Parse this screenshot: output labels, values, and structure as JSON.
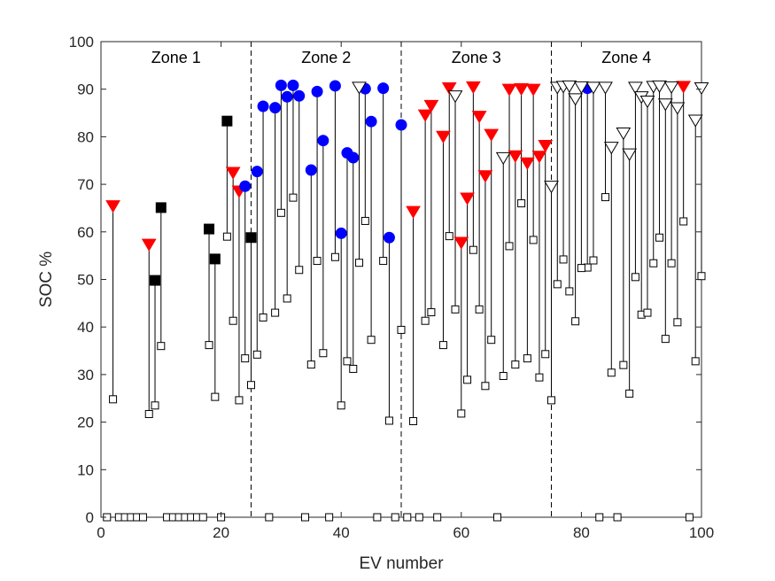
{
  "chart_data": {
    "type": "scatter",
    "title": "",
    "xlabel": "EV number",
    "ylabel": "SOC %",
    "xlim": [
      0,
      100
    ],
    "ylim": [
      0,
      100
    ],
    "xticks": [
      "0",
      "20",
      "40",
      "60",
      "80",
      "100"
    ],
    "yticks": [
      "0",
      "10",
      "20",
      "30",
      "40",
      "50",
      "60",
      "70",
      "80",
      "90",
      "100"
    ],
    "grid": false,
    "zone_boundaries": [
      25,
      50,
      75
    ],
    "zones": [
      {
        "label": "Zone 1",
        "x": 12.5
      },
      {
        "label": "Zone 2",
        "x": 37.5
      },
      {
        "label": "Zone 3",
        "x": 62.5
      },
      {
        "label": "Zone 4",
        "x": 87.5
      }
    ],
    "zone_label_y": 95,
    "colors": {
      "red": "#ff0000",
      "blue": "#0000ff",
      "black": "#000000",
      "white": "#ffffff"
    },
    "series": [
      {
        "marker": "red-triangle",
        "points": [
          [
            2,
            24.8,
            65.5
          ],
          [
            8,
            21.7,
            57.4
          ],
          [
            22,
            41.3,
            72.5
          ],
          [
            23,
            24.6,
            68.6
          ],
          [
            52,
            20.2,
            64.3
          ],
          [
            54,
            41.3,
            84.6
          ],
          [
            55,
            43.1,
            86.6
          ],
          [
            57,
            36.2,
            80.1
          ],
          [
            58,
            59.1,
            90.3
          ],
          [
            60,
            21.8,
            57.8
          ],
          [
            61,
            28.9,
            67.1
          ],
          [
            62,
            56.2,
            90.5
          ],
          [
            63,
            43.7,
            84.3
          ],
          [
            64,
            27.6,
            71.8
          ],
          [
            65,
            37.3,
            80.5
          ],
          [
            68,
            57.0,
            90.0
          ],
          [
            69,
            32.1,
            76.0
          ],
          [
            70,
            66.0,
            90.1
          ],
          [
            71,
            33.4,
            74.5
          ],
          [
            72,
            58.3,
            90.0
          ],
          [
            73,
            29.4,
            75.9
          ],
          [
            74,
            34.3,
            78.2
          ],
          [
            97,
            62.2,
            90.6
          ]
        ]
      },
      {
        "marker": "black-square",
        "points": [
          [
            9,
            23.5,
            49.8
          ],
          [
            10,
            36.0,
            65.1
          ],
          [
            18,
            36.2,
            60.6
          ],
          [
            19,
            25.3,
            54.3
          ],
          [
            21,
            59.0,
            83.3
          ],
          [
            25,
            27.8,
            58.8
          ]
        ]
      },
      {
        "marker": "blue-circle",
        "points": [
          [
            24,
            33.4,
            69.6
          ],
          [
            26,
            34.2,
            72.7
          ],
          [
            27,
            42.0,
            86.4
          ],
          [
            29,
            43.0,
            86.1
          ],
          [
            30,
            64.0,
            90.8
          ],
          [
            31,
            46.0,
            88.4
          ],
          [
            32,
            67.2,
            90.8
          ],
          [
            33,
            52.0,
            88.6
          ],
          [
            35,
            32.1,
            73.0
          ],
          [
            36,
            53.9,
            89.5
          ],
          [
            37,
            34.5,
            79.2
          ],
          [
            39,
            54.7,
            90.7
          ],
          [
            40,
            23.5,
            59.7
          ],
          [
            41,
            32.8,
            76.6
          ],
          [
            42,
            31.2,
            75.6
          ],
          [
            44,
            62.3,
            90.1
          ],
          [
            45,
            37.3,
            83.2
          ],
          [
            47,
            53.9,
            90.2
          ],
          [
            48,
            20.3,
            58.8
          ],
          [
            50,
            39.4,
            82.5
          ],
          [
            81,
            52.5,
            90.2
          ]
        ]
      },
      {
        "marker": "open-triangle",
        "points": [
          [
            43,
            53.5,
            90.4
          ],
          [
            59,
            43.7,
            88.6
          ],
          [
            67,
            29.7,
            75.6
          ],
          [
            75,
            24.6,
            69.6
          ],
          [
            76,
            49.0,
            90.4
          ],
          [
            77,
            54.2,
            90.6
          ],
          [
            78,
            47.5,
            90.7
          ],
          [
            79,
            41.2,
            88.0
          ],
          [
            80,
            52.4,
            90.5
          ],
          [
            82,
            54.0,
            90.4
          ],
          [
            84,
            67.3,
            90.4
          ],
          [
            85,
            30.4,
            77.8
          ],
          [
            87,
            32.0,
            80.8
          ],
          [
            88,
            26.0,
            76.4
          ],
          [
            89,
            50.5,
            90.4
          ],
          [
            90,
            42.6,
            88.4
          ],
          [
            91,
            43.0,
            87.5
          ],
          [
            92,
            53.4,
            90.6
          ],
          [
            93,
            58.8,
            90.7
          ],
          [
            94,
            37.5,
            86.9
          ],
          [
            95,
            53.4,
            90.5
          ],
          [
            96,
            41.0,
            86.1
          ],
          [
            99,
            32.8,
            83.5
          ],
          [
            100,
            50.7,
            90.3
          ]
        ]
      }
    ],
    "zero_points": [
      1,
      3,
      4,
      5,
      6,
      7,
      11,
      12,
      13,
      14,
      15,
      16,
      17,
      20,
      28,
      34,
      38,
      46,
      49,
      51,
      53,
      56,
      66,
      83,
      86,
      98
    ]
  }
}
